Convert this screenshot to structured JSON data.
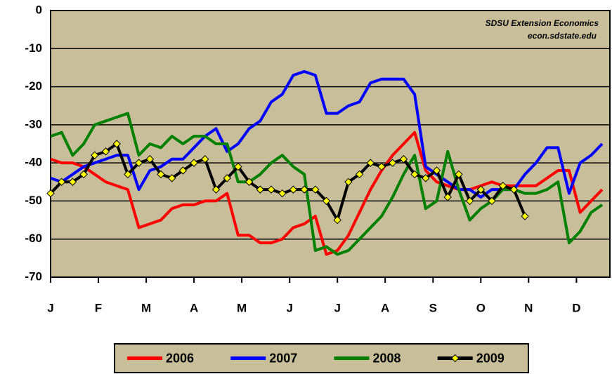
{
  "chart_data": {
    "type": "line",
    "annotations": [
      "SDSU Extension Economics",
      "econ.sdstate.edu"
    ],
    "x": [
      0,
      1,
      2,
      3,
      4,
      5,
      6,
      7,
      8,
      9,
      10,
      11,
      12,
      13,
      14,
      15,
      16,
      17,
      18,
      19,
      20,
      21,
      22,
      23,
      24,
      25,
      26,
      27,
      28,
      29,
      30,
      31,
      32,
      33,
      34,
      35,
      36,
      37,
      38,
      39,
      40,
      41,
      42,
      43,
      44,
      45,
      46,
      47,
      48,
      49,
      50
    ],
    "xlim": [
      0,
      50.7
    ],
    "xticks": [
      {
        "value": 0,
        "label": "J"
      },
      {
        "value": 4.33,
        "label": "F"
      },
      {
        "value": 8.67,
        "label": "M"
      },
      {
        "value": 13,
        "label": "A"
      },
      {
        "value": 17.33,
        "label": "M"
      },
      {
        "value": 21.67,
        "label": "J"
      },
      {
        "value": 26,
        "label": "J"
      },
      {
        "value": 30.33,
        "label": "A"
      },
      {
        "value": 34.67,
        "label": "S"
      },
      {
        "value": 39,
        "label": "O"
      },
      {
        "value": 43.33,
        "label": "N"
      },
      {
        "value": 47.67,
        "label": "D"
      }
    ],
    "ylim": [
      -70,
      0
    ],
    "yticks": [
      0,
      -10,
      -20,
      -30,
      -40,
      -50,
      -60,
      -70
    ],
    "grid": true,
    "legend": "bottom",
    "background": "#c8bf9a",
    "series": [
      {
        "name": "2006",
        "color": "#ff0000",
        "values": [
          -39,
          -40,
          -40,
          -41,
          -43,
          -45,
          -46,
          -47,
          -57,
          -56,
          -55,
          -52,
          -51,
          -51,
          -50,
          -50,
          -48,
          -59,
          -59,
          -61,
          -61,
          -60,
          -57,
          -56,
          -54,
          -64,
          -63,
          -59,
          -53,
          -47,
          -42,
          -38,
          -35,
          -32,
          -42,
          -45,
          -46,
          -47,
          -47,
          -46,
          -45,
          -46,
          -46,
          -46,
          -46,
          -44,
          -42,
          -42,
          -53,
          -50,
          -47
        ]
      },
      {
        "name": "2007",
        "color": "#0000ff",
        "values": [
          -44,
          -45,
          -43,
          -41,
          -40,
          -39,
          -38,
          -38,
          -47,
          -42,
          -41,
          -39,
          -39,
          -36,
          -33,
          -31,
          -37,
          -35,
          -31,
          -29,
          -24,
          -22,
          -17,
          -16,
          -17,
          -27,
          -27,
          -25,
          -24,
          -19,
          -18,
          -18,
          -18,
          -22,
          -41,
          -43,
          -45,
          -47,
          -47,
          -49,
          -47,
          -47,
          -47,
          -43,
          -40,
          -36,
          -36,
          -48,
          -40,
          -38,
          -35
        ]
      },
      {
        "name": "2008",
        "color": "#008000",
        "values": [
          -33,
          -32,
          -38,
          -35,
          -30,
          -29,
          -28,
          -27,
          -38,
          -35,
          -36,
          -33,
          -35,
          -33,
          -33,
          -35,
          -35,
          -45,
          -45,
          -43,
          -40,
          -38,
          -41,
          -43,
          -63,
          -62,
          -64,
          -63,
          -60,
          -57,
          -54,
          -49,
          -43,
          -38,
          -52,
          -50,
          -37,
          -47,
          -55,
          -52,
          -50,
          -47,
          -47,
          -48,
          -48,
          -47,
          -45,
          -61,
          -58,
          -53,
          -51
        ]
      },
      {
        "name": "2009",
        "color": "#000000",
        "marker_color": "#ffff00",
        "values": [
          -48,
          -45,
          -45,
          -43,
          -38,
          -37,
          -35,
          -43,
          -40,
          -39,
          -43,
          -44,
          -42,
          -40,
          -39,
          -47,
          -44,
          -41,
          -45,
          -47,
          -47,
          -48,
          -47,
          -47,
          -47,
          -50,
          -55,
          -45,
          -43,
          -40,
          -41,
          -40,
          -39,
          -43,
          -44,
          -42,
          -49,
          -43,
          -50,
          -47,
          -50,
          -46,
          -47,
          -54,
          null,
          null,
          null,
          null,
          null,
          null,
          null
        ]
      }
    ]
  }
}
